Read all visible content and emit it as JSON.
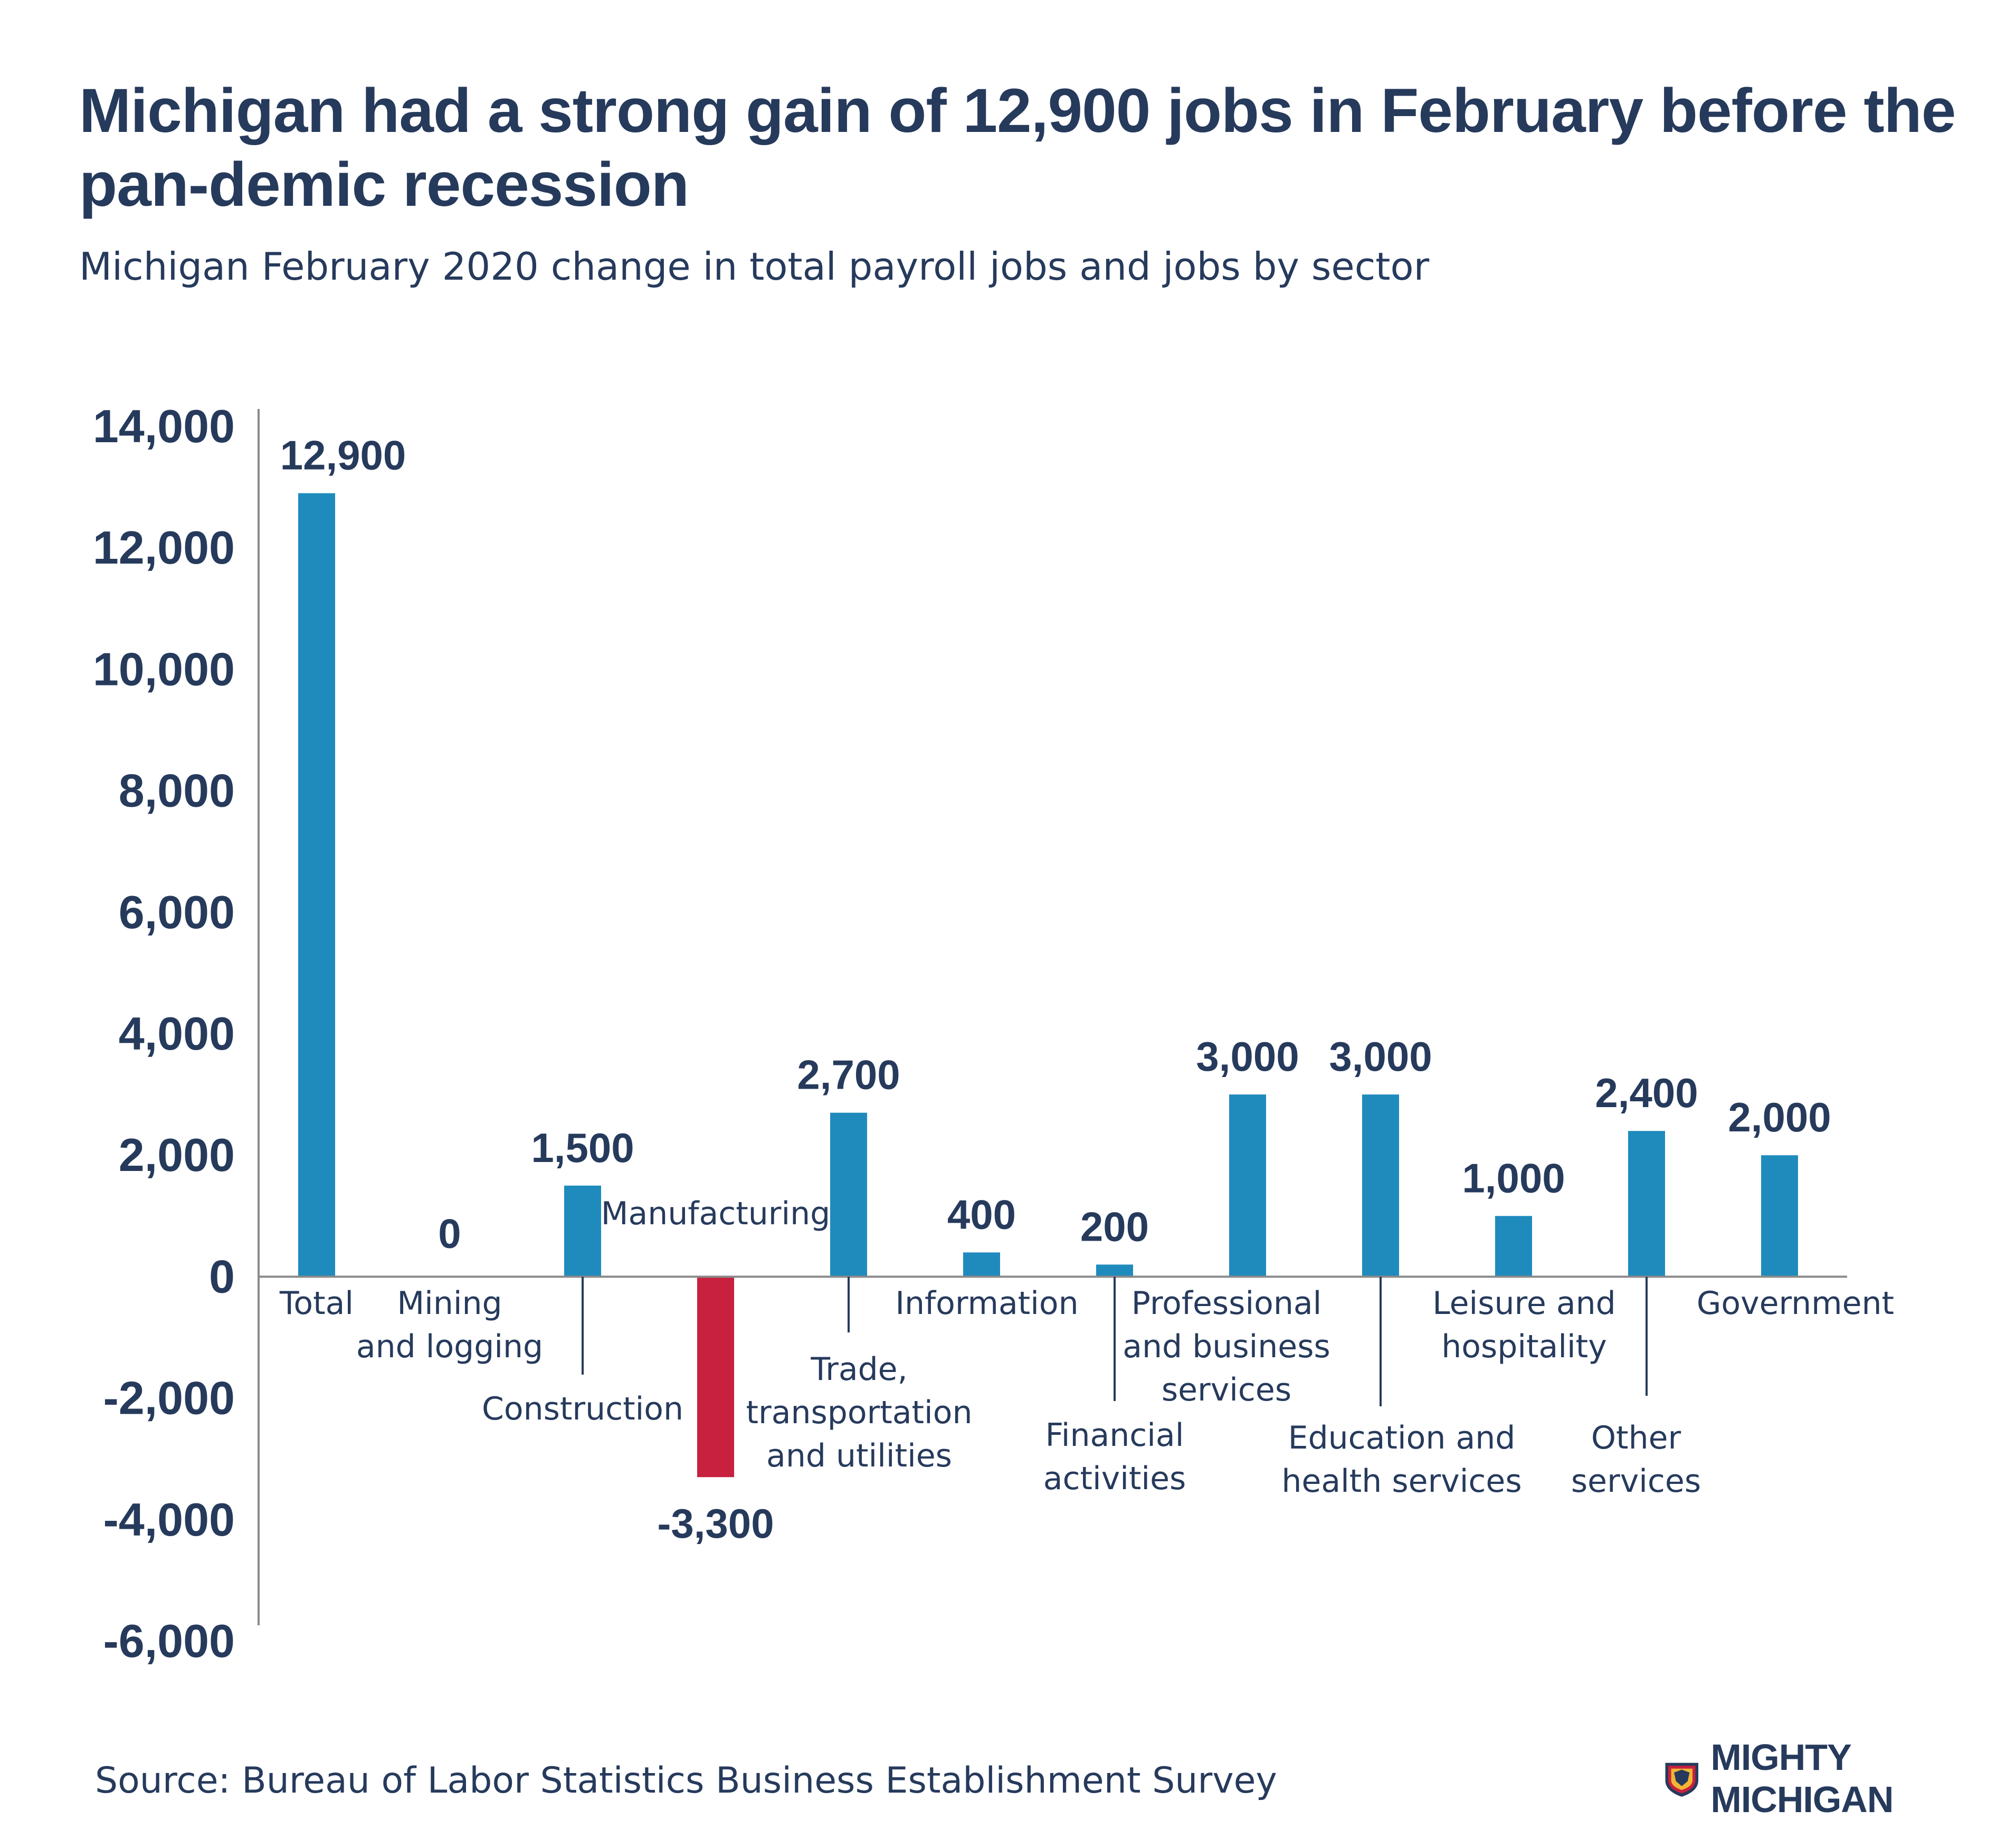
{
  "header": {
    "title": "Michigan had a strong gain of 12,900 jobs in February before the pan-demic recession",
    "subtitle": "Michigan February 2020 change in total payroll jobs and jobs by sector"
  },
  "footer": {
    "source": "Source: Bureau of Labor Statistics Business Establishment Survey",
    "brand": "MIGHTY MICHIGAN"
  },
  "colors": {
    "positive": "#1f8bbd",
    "negative": "#c8203f",
    "text": "#263a5c",
    "axis": "#8a8a8a"
  },
  "chart_data": {
    "type": "bar",
    "title": "Michigan had a strong gain of 12,900 jobs in February before the pan-demic recession",
    "subtitle": "Michigan February 2020 change in total payroll jobs and jobs by sector",
    "xlabel": "",
    "ylabel": "",
    "ylim": [
      -6000,
      14000
    ],
    "yticks": [
      14000,
      12000,
      10000,
      8000,
      6000,
      4000,
      2000,
      0,
      -2000,
      -4000,
      -6000
    ],
    "ytick_labels": [
      "14,000",
      "12,000",
      "10,000",
      "8,000",
      "6,000",
      "4,000",
      "2,000",
      "0",
      "-2,000",
      "-4,000",
      "-6,000"
    ],
    "grid": false,
    "legend": "none",
    "categories": [
      "Total",
      "Mining and logging",
      "Construction",
      "Manufacturing",
      "Trade, transportation and utilities",
      "Information",
      "Financial activities",
      "Professional and business services",
      "Education and health services",
      "Leisure and hospitality",
      "Other services",
      "Government"
    ],
    "category_label_lines": [
      [
        "Total"
      ],
      [
        "Mining",
        "and logging"
      ],
      [
        "Construction"
      ],
      [
        "Manufacturing"
      ],
      [
        "Trade,",
        "transportation",
        "and utilities"
      ],
      [
        "Information"
      ],
      [
        "Financial",
        "activities"
      ],
      [
        "Professional",
        "and business",
        "services"
      ],
      [
        "Education and",
        "health services"
      ],
      [
        "Leisure and",
        "hospitality"
      ],
      [
        "Other",
        "services"
      ],
      [
        "Government"
      ]
    ],
    "values": [
      12900,
      0,
      1500,
      -3300,
      2700,
      400,
      200,
      3000,
      3000,
      1000,
      2400,
      2000
    ],
    "data_labels": [
      "12,900",
      "0",
      "1,500",
      "-3,300",
      "2,700",
      "400",
      "200",
      "3,000",
      "3,000",
      "1,000",
      "2,400",
      "2,000"
    ]
  }
}
